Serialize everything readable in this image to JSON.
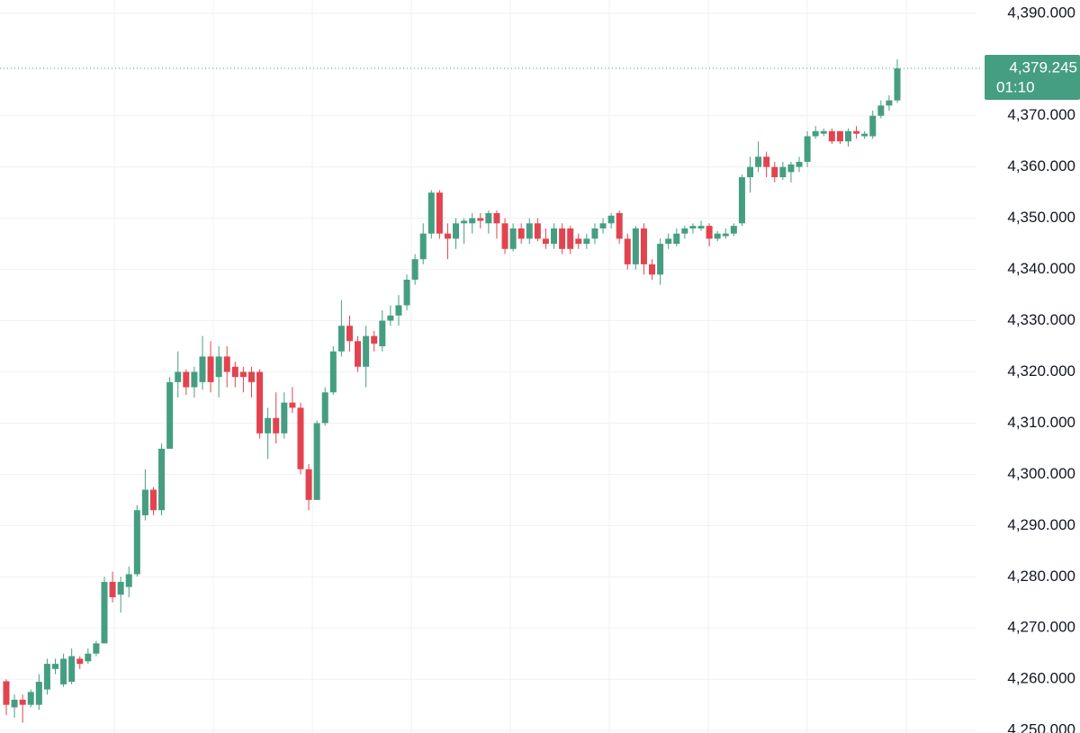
{
  "chart_data": {
    "type": "candlestick",
    "up_color": "#459e82",
    "down_color": "#e2444f",
    "grid": true,
    "ylim": [
      4249.5,
      4392.6
    ],
    "yticks": [
      {
        "value": 4250,
        "label": "4,250.000"
      },
      {
        "value": 4260,
        "label": "4,260.000"
      },
      {
        "value": 4270,
        "label": "4,270.000"
      },
      {
        "value": 4280,
        "label": "4,280.000"
      },
      {
        "value": 4290,
        "label": "4,290.000"
      },
      {
        "value": 4300,
        "label": "4,300.000"
      },
      {
        "value": 4310,
        "label": "4,310.000"
      },
      {
        "value": 4320,
        "label": "4,320.000"
      },
      {
        "value": 4330,
        "label": "4,330.000"
      },
      {
        "value": 4340,
        "label": "4,340.000"
      },
      {
        "value": 4350,
        "label": "4,350.000"
      },
      {
        "value": 4360,
        "label": "4,360.000"
      },
      {
        "value": 4370,
        "label": "4,370.000"
      },
      {
        "value": 4390,
        "label": "4,390.000"
      }
    ],
    "last_price": {
      "value": 4379.245,
      "label": "4,379.245"
    },
    "countdown": "01:10",
    "open": [
      4259.6,
      4254.5,
      4256,
      4255,
      4255,
      4258,
      4262,
      4259,
      4259.5,
      4264,
      4263.5,
      4265,
      4267,
      4279,
      4276.5,
      4278,
      4280.5,
      4292,
      4297,
      4293,
      4305,
      4318,
      4320,
      4317,
      4318,
      4323,
      4319,
      4323,
      4321,
      4320,
      4320,
      4320,
      4308,
      4311,
      4308,
      4314,
      4313,
      4301,
      4295,
      4310,
      4316,
      4324,
      4329,
      4326,
      4321,
      4327,
      4325,
      4330,
      4331,
      4333,
      4338,
      4342,
      4347,
      4355,
      4347,
      4346,
      4349,
      4349,
      4350,
      4349,
      4351,
      4349,
      4344,
      4348,
      4346,
      4349,
      4346,
      4345,
      4348,
      4348,
      4346,
      4345,
      4346,
      4348,
      4349,
      4351,
      4346,
      4341,
      4348,
      4341,
      4339,
      4345,
      4345,
      4347,
      4348,
      4348,
      4348.5,
      4346,
      4346.5,
      4347,
      4349,
      4358,
      4360,
      4362,
      4360,
      4358,
      4359,
      4360,
      4361,
      4366,
      4366.5,
      4367,
      4367,
      4365,
      4367,
      4366,
      4366,
      4370,
      4372,
      4373
    ],
    "high": [
      4260,
      4257,
      4257,
      4258,
      4261,
      4264,
      4264,
      4265,
      4266,
      4264.5,
      4266,
      4267.5,
      4280,
      4281,
      4280,
      4282,
      4294,
      4301,
      4297.5,
      4306,
      4319,
      4324,
      4320.5,
      4321,
      4327,
      4326,
      4325,
      4325,
      4322,
      4321,
      4321,
      4320.5,
      4313,
      4316,
      4316,
      4317,
      4314,
      4302,
      4310.5,
      4317,
      4325,
      4334,
      4331,
      4327,
      4329,
      4328,
      4332,
      4333,
      4335,
      4339,
      4343,
      4349,
      4355.5,
      4355.5,
      4349,
      4350,
      4350,
      4351,
      4351,
      4351.5,
      4351.5,
      4350,
      4349,
      4349,
      4350,
      4350,
      4348,
      4349,
      4349,
      4348.5,
      4347,
      4347,
      4349,
      4350,
      4351,
      4351.5,
      4347,
      4348.5,
      4349,
      4342,
      4346,
      4347,
      4348,
      4348.5,
      4349,
      4349.5,
      4349,
      4347.5,
      4348,
      4349,
      4358.5,
      4362,
      4365,
      4363,
      4361,
      4361,
      4361,
      4362,
      4367,
      4368,
      4367.5,
      4367.5,
      4367,
      4367.5,
      4368,
      4367,
      4371,
      4373,
      4374,
      4381
    ],
    "low": [
      4253,
      4252.5,
      4251.5,
      4254.5,
      4254,
      4257,
      4261,
      4258.5,
      4259,
      4262,
      4263,
      4264.5,
      4267,
      4275,
      4273,
      4276,
      4280,
      4291,
      4292,
      4292,
      4305,
      4315,
      4315.5,
      4315,
      4316.5,
      4316,
      4315,
      4317,
      4317,
      4316,
      4315,
      4307,
      4303,
      4306,
      4307,
      4312,
      4300,
      4293,
      4295,
      4309.5,
      4315.5,
      4323,
      4324,
      4320,
      4317,
      4324,
      4324,
      4329,
      4329,
      4332,
      4337,
      4341,
      4346,
      4346,
      4342,
      4344,
      4345,
      4347,
      4348,
      4347,
      4346,
      4343,
      4343.5,
      4345,
      4345,
      4345.5,
      4344,
      4344,
      4343,
      4343,
      4344,
      4344,
      4345,
      4347,
      4348,
      4345,
      4340,
      4340,
      4339,
      4338,
      4337,
      4344,
      4344.5,
      4346,
      4347,
      4347.5,
      4344.5,
      4345.5,
      4346,
      4346.5,
      4348.5,
      4355,
      4359,
      4358,
      4357,
      4357.5,
      4357,
      4359,
      4360,
      4365.5,
      4366,
      4364.5,
      4364.5,
      4364,
      4365.5,
      4365.5,
      4365.5,
      4369.5,
      4371,
      4372.5
    ],
    "close": [
      4255,
      4256,
      4255,
      4257.5,
      4259.5,
      4263,
      4263,
      4264,
      4264.5,
      4263,
      4265,
      4267,
      4279,
      4276,
      4279,
      4280.5,
      4293,
      4297,
      4293,
      4305,
      4318,
      4320,
      4317,
      4320,
      4323,
      4318,
      4323,
      4320,
      4319,
      4319,
      4318,
      4308,
      4311,
      4308,
      4314,
      4313,
      4301,
      4295,
      4310,
      4316,
      4324,
      4329,
      4326,
      4321,
      4327,
      4325.5,
      4330,
      4331,
      4333,
      4338,
      4342,
      4347,
      4355,
      4347,
      4346,
      4349,
      4349.5,
      4350,
      4349.5,
      4351,
      4349,
      4344,
      4348,
      4346,
      4349,
      4346,
      4345,
      4348,
      4344,
      4344,
      4345,
      4346,
      4348,
      4349,
      4350.5,
      4346,
      4341,
      4348,
      4341,
      4339,
      4345,
      4346,
      4347,
      4348,
      4348.5,
      4348.5,
      4346,
      4347,
      4347,
      4348.5,
      4358,
      4360,
      4362,
      4360,
      4358,
      4360,
      4360.5,
      4361,
      4366,
      4367,
      4367,
      4365,
      4365,
      4367,
      4366.5,
      4366.5,
      4370,
      4372,
      4373,
      4379.245
    ]
  }
}
